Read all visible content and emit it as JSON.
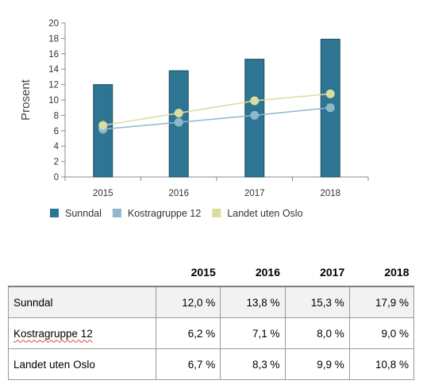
{
  "chart_data": {
    "type": "bar+line",
    "categories": [
      "2015",
      "2016",
      "2017",
      "2018"
    ],
    "ylabel": "Prosent",
    "ylim": [
      0,
      20
    ],
    "yticks": [
      0,
      2,
      4,
      6,
      8,
      10,
      12,
      14,
      16,
      18,
      20
    ],
    "legend_position": "bottom",
    "series": [
      {
        "name": "Sunndal",
        "kind": "bar",
        "color": "#2e7593",
        "values": [
          12.0,
          13.8,
          15.3,
          17.9
        ]
      },
      {
        "name": "Kostragruppe 12",
        "kind": "line",
        "color": "#8fb8cb",
        "values": [
          6.2,
          7.1,
          8.0,
          9.0
        ]
      },
      {
        "name": "Landet uten Oslo",
        "kind": "line",
        "color": "#dcdca0",
        "values": [
          6.7,
          8.3,
          9.9,
          10.8
        ]
      }
    ]
  },
  "table": {
    "headers": [
      "",
      "2015",
      "2016",
      "2017",
      "2018"
    ],
    "rows": [
      {
        "name": "Sunndal",
        "cells": [
          "12,0 %",
          "13,8 %",
          "15,3 %",
          "17,9 %"
        ]
      },
      {
        "name": "Kostragruppe 12",
        "cells": [
          "6,2 %",
          "7,1 %",
          "8,0 %",
          "9,0 %"
        ]
      },
      {
        "name": "Landet uten Oslo",
        "cells": [
          "6,7 %",
          "8,3 %",
          "9,9 %",
          "10,8 %"
        ]
      }
    ]
  }
}
